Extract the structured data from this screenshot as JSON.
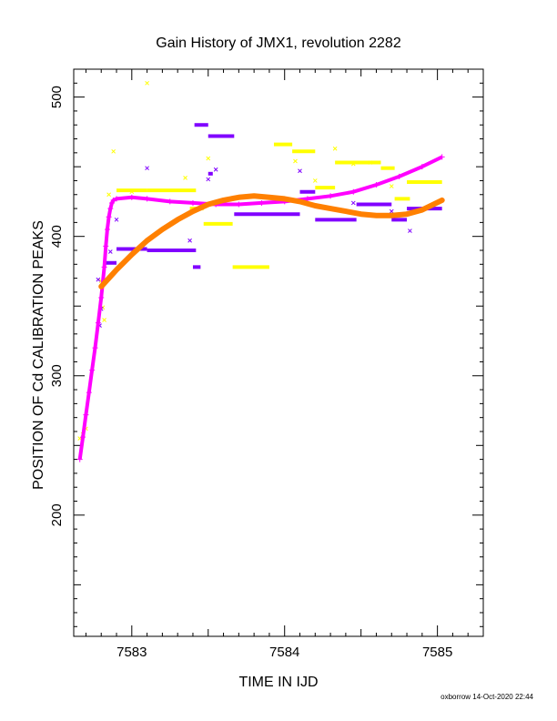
{
  "chart_data": {
    "type": "scatter",
    "title": "Gain History of JMX1, revolution 2282",
    "xlabel": "TIME IN IJD",
    "ylabel": "POSITION OF Cd CALIBRATION PEAKS",
    "xlim": [
      7582.62,
      7585.3
    ],
    "ylim": [
      113,
      520
    ],
    "x_ticks": [
      7583,
      7584,
      7585
    ],
    "x_tick_labels": [
      "7583",
      "7584",
      "7585"
    ],
    "y_ticks": [
      200,
      300,
      400,
      500
    ],
    "y_tick_labels": [
      "200",
      "300",
      "400",
      "500"
    ],
    "grid": false,
    "colors": {
      "yellow": "#ffff00",
      "purple": "#8000ff",
      "magenta": "#ff00ff",
      "orange": "#ff8000"
    },
    "series": [
      {
        "color": "yellow",
        "marker": "x",
        "segments": [
          {
            "x0": 7582.9,
            "x1": 7583.1,
            "y": 433
          },
          {
            "x0": 7583.1,
            "x1": 7583.42,
            "y": 433
          },
          {
            "x0": 7583.38,
            "x1": 7583.47,
            "y": 420
          },
          {
            "x0": 7583.47,
            "x1": 7583.66,
            "y": 409
          },
          {
            "x0": 7583.66,
            "x1": 7583.9,
            "y": 378
          },
          {
            "x0": 7583.93,
            "x1": 7584.05,
            "y": 466
          },
          {
            "x0": 7584.05,
            "x1": 7584.2,
            "y": 461
          },
          {
            "x0": 7584.2,
            "x1": 7584.33,
            "y": 435
          },
          {
            "x0": 7584.33,
            "x1": 7584.63,
            "y": 453
          },
          {
            "x0": 7584.63,
            "x1": 7584.72,
            "y": 449
          },
          {
            "x0": 7584.72,
            "x1": 7584.82,
            "y": 427
          },
          {
            "x0": 7584.8,
            "x1": 7585.03,
            "y": 439
          }
        ],
        "points": [
          [
            7583.1,
            510
          ],
          [
            7582.88,
            461
          ],
          [
            7583.5,
            456
          ],
          [
            7583.35,
            442
          ],
          [
            7584.33,
            463
          ],
          [
            7584.07,
            454
          ],
          [
            7584.2,
            440
          ],
          [
            7582.85,
            430
          ],
          [
            7584.56,
            453
          ],
          [
            7584.7,
            436
          ],
          [
            7582.8,
            368
          ],
          [
            7582.81,
            349
          ],
          [
            7582.82,
            340
          ],
          [
            7582.7,
            262
          ],
          [
            7582.68,
            258
          ],
          [
            7582.66,
            255
          ],
          [
            7583.0,
            432
          ],
          [
            7584.45,
            452
          ]
        ]
      },
      {
        "color": "purple",
        "marker": "x",
        "segments": [
          {
            "x0": 7582.82,
            "x1": 7582.9,
            "y": 381
          },
          {
            "x0": 7582.9,
            "x1": 7583.1,
            "y": 391
          },
          {
            "x0": 7583.1,
            "x1": 7583.42,
            "y": 390
          },
          {
            "x0": 7583.4,
            "x1": 7583.45,
            "y": 378
          },
          {
            "x0": 7583.41,
            "x1": 7583.5,
            "y": 480
          },
          {
            "x0": 7583.5,
            "x1": 7583.67,
            "y": 472
          },
          {
            "x0": 7583.5,
            "x1": 7583.53,
            "y": 445
          },
          {
            "x0": 7583.67,
            "x1": 7584.1,
            "y": 416
          },
          {
            "x0": 7584.1,
            "x1": 7584.2,
            "y": 432
          },
          {
            "x0": 7584.2,
            "x1": 7584.47,
            "y": 412
          },
          {
            "x0": 7584.47,
            "x1": 7584.7,
            "y": 423
          },
          {
            "x0": 7584.7,
            "x1": 7584.8,
            "y": 412
          },
          {
            "x0": 7584.8,
            "x1": 7585.03,
            "y": 420
          }
        ],
        "points": [
          [
            7583.1,
            449
          ],
          [
            7583.5,
            441
          ],
          [
            7583.55,
            448
          ],
          [
            7584.1,
            447
          ],
          [
            7583.38,
            397
          ],
          [
            7582.9,
            412
          ],
          [
            7582.86,
            389
          ],
          [
            7584.82,
            404
          ],
          [
            7584.7,
            418
          ],
          [
            7584.45,
            424
          ],
          [
            7582.78,
            369
          ],
          [
            7582.8,
            348
          ],
          [
            7582.79,
            336
          ]
        ]
      },
      {
        "name": "",
        "color": "magenta",
        "marker": "+",
        "points": [
          [
            7582.66,
            240
          ],
          [
            7582.68,
            256
          ],
          [
            7582.7,
            272
          ],
          [
            7582.72,
            288
          ],
          [
            7582.74,
            304
          ],
          [
            7582.76,
            320
          ],
          [
            7582.78,
            338
          ],
          [
            7582.8,
            356
          ],
          [
            7582.82,
            378
          ],
          [
            7582.83,
            393
          ],
          [
            7582.84,
            405
          ],
          [
            7582.85,
            414
          ],
          [
            7582.86,
            420
          ],
          [
            7582.87,
            424
          ],
          [
            7582.88,
            426
          ],
          [
            7582.9,
            427
          ],
          [
            7583.0,
            428
          ],
          [
            7583.1,
            427
          ],
          [
            7583.25,
            425
          ],
          [
            7583.4,
            424
          ],
          [
            7583.55,
            423
          ],
          [
            7583.7,
            423
          ],
          [
            7583.85,
            424
          ],
          [
            7584.0,
            425
          ],
          [
            7584.15,
            427
          ],
          [
            7584.3,
            429
          ],
          [
            7584.45,
            432
          ],
          [
            7584.6,
            437
          ],
          [
            7584.75,
            443
          ],
          [
            7584.9,
            450
          ],
          [
            7585.03,
            457
          ]
        ]
      },
      {
        "name": "",
        "color": "orange",
        "marker": "curve",
        "points": [
          [
            7582.8,
            364
          ],
          [
            7582.9,
            376
          ],
          [
            7583.0,
            387
          ],
          [
            7583.1,
            397
          ],
          [
            7583.2,
            405
          ],
          [
            7583.3,
            412
          ],
          [
            7583.4,
            418
          ],
          [
            7583.5,
            423
          ],
          [
            7583.6,
            426
          ],
          [
            7583.7,
            428
          ],
          [
            7583.8,
            429
          ],
          [
            7583.9,
            428
          ],
          [
            7584.0,
            427
          ],
          [
            7584.1,
            425
          ],
          [
            7584.2,
            422
          ],
          [
            7584.3,
            420
          ],
          [
            7584.4,
            418
          ],
          [
            7584.5,
            416
          ],
          [
            7584.6,
            415
          ],
          [
            7584.7,
            415
          ],
          [
            7584.8,
            416
          ],
          [
            7584.9,
            419
          ],
          [
            7585.03,
            426
          ]
        ]
      }
    ]
  },
  "footer": "oxborrow 14-Oct-2020 22:44"
}
